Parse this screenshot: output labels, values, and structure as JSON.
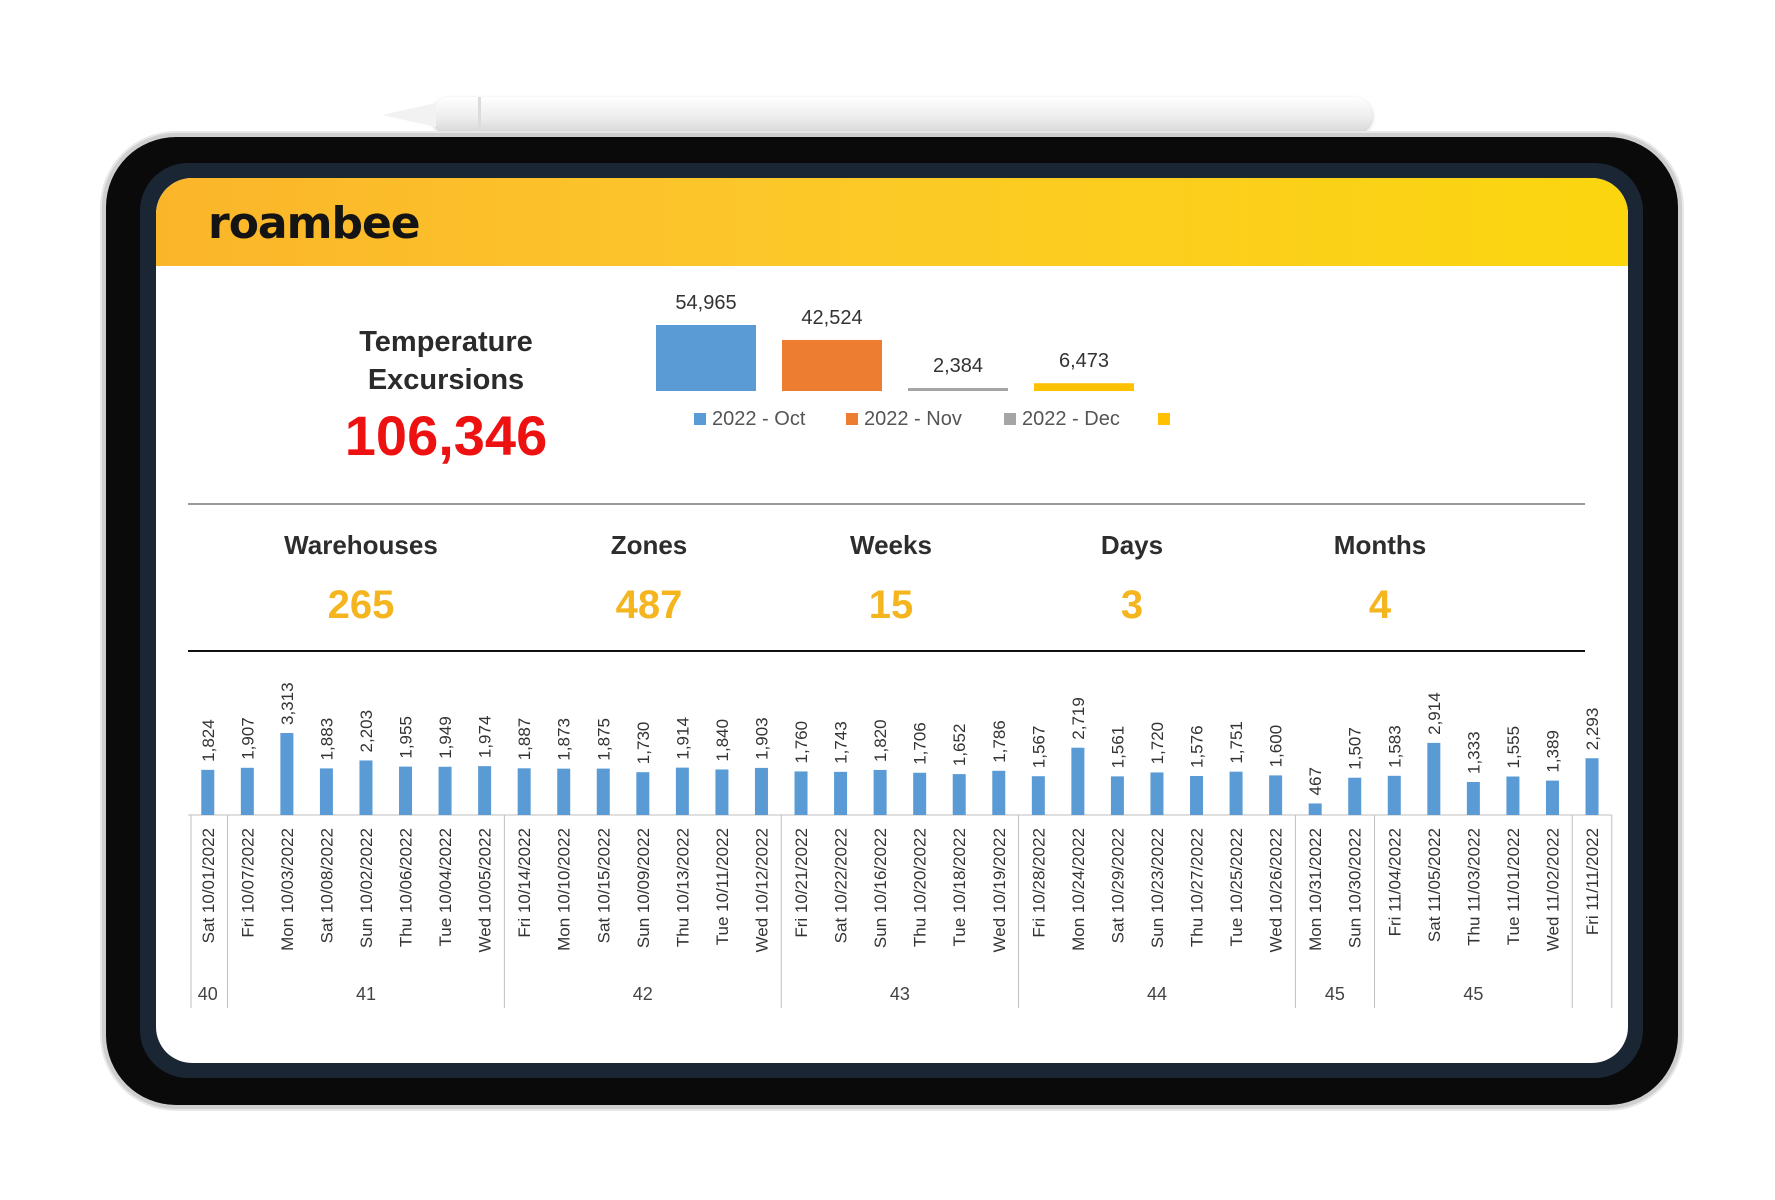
{
  "brand": {
    "logo_text": "roambee",
    "header_colors": [
      "#fbb52a",
      "#fbd60f"
    ]
  },
  "kpi": {
    "title_line1": "Temperature",
    "title_line2": "Excursions",
    "total": "106,346",
    "total_color": "#ee1111"
  },
  "monthly_chart": {
    "type": "bar",
    "categories": [
      "2022 - Oct",
      "2022 - Nov",
      "2022 - Dec",
      ""
    ],
    "values": [
      54965,
      42524,
      2384,
      6473
    ],
    "value_labels": [
      "54,965",
      "42,524",
      "2,384",
      "6,473"
    ],
    "colors": [
      "#5b9bd5",
      "#ed7d31",
      "#a5a5a5",
      "#ffc000"
    ],
    "legend_placement": "bottom"
  },
  "metrics": [
    {
      "label": "Warehouses",
      "value": "265"
    },
    {
      "label": "Zones",
      "value": "487"
    },
    {
      "label": "Weeks",
      "value": "15"
    },
    {
      "label": "Days",
      "value": "3"
    },
    {
      "label": "Months",
      "value": "4"
    }
  ],
  "metric_value_color": "#f4b51f",
  "chart_data": {
    "type": "bar",
    "categories": [
      "Sat 10/01/2022",
      "Fri 10/07/2022",
      "Mon 10/03/2022",
      "Sat 10/08/2022",
      "Sun 10/02/2022",
      "Thu 10/06/2022",
      "Tue 10/04/2022",
      "Wed 10/05/2022",
      "Fri 10/14/2022",
      "Mon 10/10/2022",
      "Sat 10/15/2022",
      "Sun 10/09/2022",
      "Thu 10/13/2022",
      "Tue 10/11/2022",
      "Wed 10/12/2022",
      "Fri 10/21/2022",
      "Sat 10/22/2022",
      "Sun 10/16/2022",
      "Thu 10/20/2022",
      "Tue 10/18/2022",
      "Wed 10/19/2022",
      "Fri 10/28/2022",
      "Mon 10/24/2022",
      "Sat 10/29/2022",
      "Sun 10/23/2022",
      "Thu 10/27/2022",
      "Tue 10/25/2022",
      "Wed 10/26/2022",
      "Mon 10/31/2022",
      "Sun 10/30/2022",
      "Fri 11/04/2022",
      "Sat 11/05/2022",
      "Thu 11/03/2022",
      "Tue 11/01/2022",
      "Wed 11/02/2022",
      "Fri 11/11/2022"
    ],
    "values": [
      1824,
      1907,
      3313,
      1883,
      2203,
      1955,
      1949,
      1974,
      1887,
      1873,
      1875,
      1730,
      1914,
      1840,
      1903,
      1760,
      1743,
      1820,
      1706,
      1652,
      1786,
      1567,
      2719,
      1561,
      1720,
      1576,
      1751,
      1600,
      467,
      1507,
      1583,
      2914,
      1333,
      1555,
      1389,
      2293
    ],
    "value_labels": [
      "1,824",
      "1,907",
      "3,313",
      "1,883",
      "2,203",
      "1,955",
      "1,949",
      "1,974",
      "1,887",
      "1,873",
      "1,875",
      "1,730",
      "1,914",
      "1,840",
      "1,903",
      "1,760",
      "1,743",
      "1,820",
      "1,706",
      "1,652",
      "1,786",
      "1,567",
      "2,719",
      "1,561",
      "1,720",
      "1,576",
      "1,751",
      "1,600",
      "467",
      "1,507",
      "1,583",
      "2,914",
      "1,333",
      "1,555",
      "1,389",
      "2,293"
    ],
    "week_groups": [
      {
        "label": "40",
        "count": 1
      },
      {
        "label": "41",
        "count": 7
      },
      {
        "label": "42",
        "count": 7
      },
      {
        "label": "43",
        "count": 6
      },
      {
        "label": "44",
        "count": 7
      },
      {
        "label": "45",
        "count": 2
      },
      {
        "label": "45",
        "count": 5
      },
      {
        "label": "",
        "count": 1
      }
    ],
    "bar_color": "#5b9bd5",
    "title": "",
    "xlabel": "",
    "ylabel": "",
    "ylim": [
      0,
      3500
    ]
  }
}
